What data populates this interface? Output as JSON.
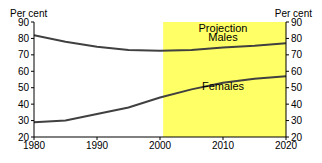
{
  "chart_data": {
    "type": "line",
    "y_label": "Per cent",
    "y2_label": "Per cent",
    "x": [
      1980,
      1985,
      1990,
      1995,
      2000,
      2005,
      2010,
      2015,
      2020
    ],
    "series": [
      {
        "name": "Males",
        "color": "#404040",
        "values": [
          82,
          78,
          75,
          73,
          72.5,
          73,
          74.5,
          75.5,
          77
        ]
      },
      {
        "name": "Females",
        "color": "#404040",
        "values": [
          29,
          30,
          34,
          38,
          44,
          49,
          53,
          55.5,
          57
        ]
      }
    ],
    "xlim": [
      1980,
      2020
    ],
    "xticks": [
      1980,
      1990,
      2000,
      2010,
      2020
    ],
    "ylim": [
      20,
      90
    ],
    "yticks": [
      20,
      30,
      40,
      50,
      60,
      70,
      80,
      90
    ],
    "y2lim": [
      20,
      90
    ],
    "y2ticks": [
      20,
      30,
      40,
      50,
      60,
      70,
      80,
      90
    ],
    "grid": false,
    "projection": {
      "start": 2000.5,
      "end": 2020,
      "label": "Projection",
      "color": "#ffff66"
    },
    "annotations": [
      {
        "text": "Projection",
        "x": 2010,
        "y": 86
      },
      {
        "text": "Males",
        "x": 2010,
        "y": 81
      },
      {
        "text": "Females",
        "x": 2010,
        "y": 51
      }
    ]
  }
}
